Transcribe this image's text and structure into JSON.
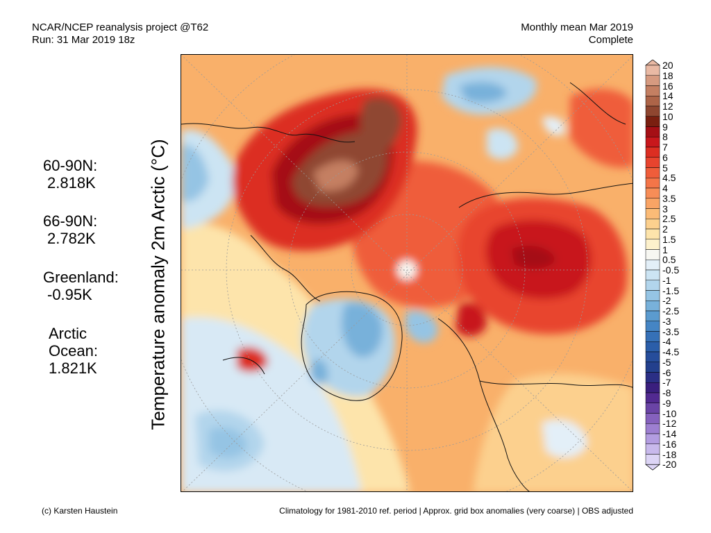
{
  "header": {
    "left_line1": "NCAR/NCEP reanalysis project @T62",
    "left_line2": "Run: 31 Mar 2019 18z",
    "right_line1": "Monthly mean Mar 2019",
    "right_line2": "Complete"
  },
  "stats": [
    {
      "label": "60-90N:",
      "value": "2.818K"
    },
    {
      "label": "66-90N:",
      "value": "2.782K"
    },
    {
      "label": "Greenland:",
      "value": "-0.95K"
    },
    {
      "label": "Arctic",
      "label2": "Ocean:",
      "value": "1.821K"
    }
  ],
  "y_axis_label": "Temperature anomaly 2m Arctic (°C)",
  "colorbar": {
    "levels": [
      "20",
      "18",
      "16",
      "14",
      "12",
      "10",
      "9",
      "8",
      "7",
      "6",
      "5",
      "4.5",
      "4",
      "3.5",
      "3",
      "2.5",
      "2",
      "1.5",
      "1",
      "0.5",
      "-0.5",
      "-1",
      "-1.5",
      "-2",
      "-2.5",
      "-3",
      "-3.5",
      "-4",
      "-4.5",
      "-5",
      "-6",
      "-7",
      "-8",
      "-9",
      "-10",
      "-12",
      "-14",
      "-16",
      "-18",
      "-20"
    ],
    "colors": [
      "#e9b9a4",
      "#d69a80",
      "#c47f62",
      "#ad6448",
      "#8f4630",
      "#7a1f10",
      "#a50f15",
      "#c8171c",
      "#dc2e22",
      "#e8442e",
      "#ef5d3a",
      "#f47548",
      "#f78d57",
      "#f9a465",
      "#fbbb77",
      "#fcd08e",
      "#fde4ab",
      "#fdf1cc",
      "#f7f7f2",
      "#e3eff8",
      "#cce4f3",
      "#b2d5ec",
      "#95c4e4",
      "#78b1da",
      "#5b9bcf",
      "#4585c4",
      "#3671b7",
      "#2b5ea9",
      "#264d9b",
      "#23408d",
      "#2b2f85",
      "#3a1f7e",
      "#522a91",
      "#6a44a6",
      "#8561bd",
      "#9d7fd1",
      "#b39de1",
      "#c8b9ec",
      "#dcd4f5"
    ]
  },
  "footer": {
    "left": "(c) Karsten Haustein",
    "right": "Climatology for 1981-2010 ref. period | Approx. grid box anomalies (very coarse) | OBS adjusted"
  }
}
